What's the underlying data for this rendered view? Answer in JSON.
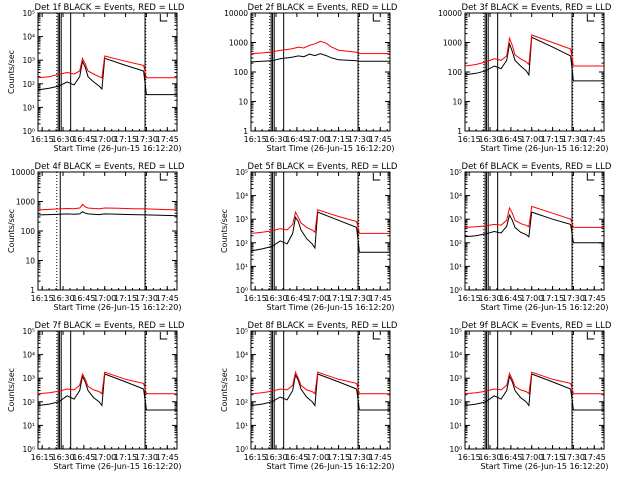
{
  "xlabel": "Start Time (26-Jun-15 16:12:20)",
  "x_ticks": [
    "16:15",
    "16:30",
    "16:45",
    "17:00",
    "17:15",
    "17:30",
    "17:45"
  ],
  "colors": {
    "events": "#000000",
    "lld": "#ff0000",
    "axes": "#000000"
  },
  "chart_data": [
    {
      "type": "line",
      "title": "Det 1f BLACK = Events, RED = LLD",
      "ylabel": "Counts/sec",
      "yscale": "log",
      "ylim": [
        1,
        100000
      ],
      "y_tick_labels": [
        "10⁰",
        "10¹",
        "10²",
        "10³",
        "10⁴",
        "10⁵"
      ],
      "x": [
        "16:12",
        "16:20",
        "16:27",
        "16:33",
        "16:38",
        "16:42",
        "16:44",
        "16:46",
        "16:48",
        "16:52",
        "16:56",
        "16:58",
        "17:00",
        "17:15",
        "17:28",
        "17:30",
        "17:45",
        "17:52"
      ],
      "series": [
        {
          "name": "BLACK = Events",
          "values": [
            55,
            65,
            80,
            120,
            90,
            200,
            900,
            500,
            200,
            120,
            80,
            60,
            1200,
            600,
            350,
            35,
            35,
            35
          ]
        },
        {
          "name": "RED = LLD",
          "values": [
            180,
            200,
            250,
            300,
            260,
            350,
            1200,
            700,
            350,
            260,
            200,
            180,
            1500,
            900,
            600,
            180,
            180,
            180
          ]
        }
      ]
    },
    {
      "type": "line",
      "title": "Det 2f BLACK = Events, RED = LLD",
      "ylabel": "",
      "yscale": "log",
      "ylim": [
        1,
        10000
      ],
      "y_tick_labels": [
        "1",
        "10",
        "100",
        "1000",
        "10000"
      ],
      "x": [
        "16:12",
        "16:20",
        "16:27",
        "16:33",
        "16:38",
        "16:42",
        "16:46",
        "16:50",
        "16:54",
        "16:58",
        "17:02",
        "17:06",
        "17:10",
        "17:15",
        "17:28",
        "17:30",
        "17:45",
        "17:52"
      ],
      "series": [
        {
          "name": "BLACK = Events",
          "values": [
            220,
            230,
            240,
            280,
            300,
            320,
            350,
            330,
            400,
            360,
            420,
            360,
            300,
            260,
            240,
            230,
            230,
            230
          ]
        },
        {
          "name": "RED = LLD",
          "values": [
            420,
            440,
            480,
            540,
            580,
            620,
            700,
            650,
            800,
            900,
            1100,
            950,
            700,
            550,
            470,
            420,
            420,
            420
          ]
        }
      ]
    },
    {
      "type": "line",
      "title": "Det 3f BLACK = Events, RED = LLD",
      "ylabel": "",
      "yscale": "log",
      "ylim": [
        1,
        10000
      ],
      "y_tick_labels": [
        "1",
        "10",
        "100",
        "1000",
        "10000"
      ],
      "x": [
        "16:12",
        "16:20",
        "16:27",
        "16:33",
        "16:38",
        "16:42",
        "16:44",
        "16:46",
        "16:48",
        "16:52",
        "16:56",
        "16:58",
        "17:00",
        "17:15",
        "17:28",
        "17:30",
        "17:45",
        "17:52"
      ],
      "series": [
        {
          "name": "BLACK = Events",
          "values": [
            80,
            90,
            110,
            160,
            130,
            250,
            900,
            500,
            250,
            160,
            110,
            80,
            1500,
            700,
            350,
            50,
            50,
            50
          ]
        },
        {
          "name": "RED = LLD",
          "values": [
            160,
            180,
            220,
            280,
            250,
            350,
            1400,
            800,
            380,
            280,
            220,
            180,
            1800,
            1000,
            600,
            160,
            160,
            160
          ]
        }
      ]
    },
    {
      "type": "line",
      "title": "Det 4f BLACK = Events, RED = LLD",
      "ylabel": "Counts/sec",
      "yscale": "log",
      "ylim": [
        1,
        10000
      ],
      "y_tick_labels": [
        "1",
        "10",
        "100",
        "1000",
        "10000"
      ],
      "x": [
        "16:12",
        "16:20",
        "16:27",
        "16:33",
        "16:38",
        "16:42",
        "16:44",
        "16:46",
        "16:48",
        "16:52",
        "16:56",
        "17:00",
        "17:10",
        "17:20",
        "17:30",
        "17:40",
        "17:52"
      ],
      "series": [
        {
          "name": "BLACK = Events",
          "values": [
            350,
            360,
            370,
            380,
            370,
            380,
            450,
            400,
            380,
            370,
            360,
            380,
            370,
            360,
            350,
            340,
            330
          ]
        },
        {
          "name": "RED = LLD",
          "values": [
            520,
            540,
            560,
            580,
            570,
            600,
            800,
            650,
            600,
            580,
            570,
            600,
            590,
            570,
            560,
            540,
            520
          ]
        }
      ]
    },
    {
      "type": "line",
      "title": "Det 5f BLACK = Events, RED = LLD",
      "ylabel": "Counts/sec",
      "yscale": "log",
      "ylim": [
        1,
        100000
      ],
      "y_tick_labels": [
        "10⁰",
        "10¹",
        "10²",
        "10³",
        "10⁴",
        "10⁵"
      ],
      "x": [
        "16:12",
        "16:20",
        "16:27",
        "16:33",
        "16:38",
        "16:42",
        "16:44",
        "16:46",
        "16:48",
        "16:52",
        "16:56",
        "16:58",
        "17:00",
        "17:15",
        "17:28",
        "17:30",
        "17:45",
        "17:52"
      ],
      "series": [
        {
          "name": "BLACK = Events",
          "values": [
            45,
            55,
            70,
            120,
            90,
            250,
            1200,
            800,
            350,
            150,
            90,
            60,
            2000,
            900,
            450,
            40,
            40,
            40
          ]
        },
        {
          "name": "RED = LLD",
          "values": [
            250,
            280,
            320,
            400,
            350,
            600,
            2000,
            1200,
            700,
            450,
            350,
            280,
            2500,
            1300,
            800,
            250,
            250,
            250
          ]
        }
      ]
    },
    {
      "type": "line",
      "title": "Det 6f BLACK = Events, RED = LLD",
      "ylabel": "",
      "yscale": "log",
      "ylim": [
        1,
        100000
      ],
      "y_tick_labels": [
        "10⁰",
        "10¹",
        "10²",
        "10³",
        "10⁴",
        "10⁵"
      ],
      "x": [
        "16:12",
        "16:20",
        "16:27",
        "16:33",
        "16:38",
        "16:42",
        "16:44",
        "16:46",
        "16:48",
        "16:52",
        "16:56",
        "16:58",
        "17:00",
        "17:15",
        "17:28",
        "17:30",
        "17:45",
        "17:52"
      ],
      "series": [
        {
          "name": "BLACK = Events",
          "values": [
            180,
            200,
            240,
            300,
            260,
            500,
            1500,
            900,
            450,
            280,
            220,
            180,
            2000,
            1000,
            600,
            100,
            100,
            100
          ]
        },
        {
          "name": "RED = LLD",
          "values": [
            450,
            480,
            520,
            600,
            560,
            900,
            3000,
            1800,
            900,
            650,
            550,
            480,
            3500,
            1800,
            1000,
            450,
            450,
            450
          ]
        }
      ]
    },
    {
      "type": "line",
      "title": "Det 7f BLACK = Events, RED = LLD",
      "ylabel": "Counts/sec",
      "yscale": "log",
      "ylim": [
        1,
        100000
      ],
      "y_tick_labels": [
        "10⁰",
        "10¹",
        "10²",
        "10³",
        "10⁴",
        "10⁵"
      ],
      "x": [
        "16:12",
        "16:20",
        "16:27",
        "16:33",
        "16:38",
        "16:42",
        "16:44",
        "16:46",
        "16:48",
        "16:52",
        "16:56",
        "16:58",
        "17:00",
        "17:15",
        "17:28",
        "17:30",
        "17:45",
        "17:52"
      ],
      "series": [
        {
          "name": "BLACK = Events",
          "values": [
            70,
            80,
            100,
            180,
            130,
            300,
            1200,
            700,
            300,
            150,
            100,
            70,
            1500,
            700,
            350,
            45,
            45,
            45
          ]
        },
        {
          "name": "RED = LLD",
          "values": [
            220,
            240,
            280,
            350,
            320,
            500,
            1500,
            900,
            450,
            320,
            270,
            220,
            1800,
            900,
            600,
            220,
            220,
            220
          ]
        }
      ]
    },
    {
      "type": "line",
      "title": "Det 8f BLACK = Events, RED = LLD",
      "ylabel": "Counts/sec",
      "yscale": "log",
      "ylim": [
        1,
        100000
      ],
      "y_tick_labels": [
        "10⁰",
        "10¹",
        "10²",
        "10³",
        "10⁴",
        "10⁵"
      ],
      "x": [
        "16:12",
        "16:20",
        "16:27",
        "16:33",
        "16:38",
        "16:42",
        "16:44",
        "16:46",
        "16:48",
        "16:52",
        "16:56",
        "16:58",
        "17:00",
        "17:15",
        "17:28",
        "17:30",
        "17:45",
        "17:52"
      ],
      "series": [
        {
          "name": "BLACK = Events",
          "values": [
            70,
            80,
            100,
            160,
            120,
            300,
            1400,
            800,
            350,
            160,
            100,
            70,
            1500,
            700,
            350,
            45,
            45,
            45
          ]
        },
        {
          "name": "RED = LLD",
          "values": [
            220,
            240,
            280,
            350,
            320,
            500,
            1800,
            1000,
            500,
            320,
            270,
            220,
            1800,
            900,
            600,
            220,
            220,
            220
          ]
        }
      ]
    },
    {
      "type": "line",
      "title": "Det 9f BLACK = Events, RED = LLD",
      "ylabel": "",
      "yscale": "log",
      "ylim": [
        1,
        100000
      ],
      "y_tick_labels": [
        "10⁰",
        "10¹",
        "10²",
        "10³",
        "10⁴",
        "10⁵"
      ],
      "x": [
        "16:12",
        "16:20",
        "16:27",
        "16:33",
        "16:38",
        "16:42",
        "16:44",
        "16:46",
        "16:48",
        "16:52",
        "16:56",
        "16:58",
        "17:00",
        "17:15",
        "17:28",
        "17:30",
        "17:45",
        "17:52"
      ],
      "series": [
        {
          "name": "BLACK = Events",
          "values": [
            70,
            80,
            100,
            180,
            130,
            300,
            1200,
            700,
            300,
            150,
            100,
            70,
            1500,
            700,
            350,
            45,
            45,
            45
          ]
        },
        {
          "name": "RED = LLD",
          "values": [
            220,
            240,
            280,
            350,
            320,
            500,
            1600,
            900,
            450,
            320,
            270,
            220,
            1800,
            900,
            600,
            220,
            220,
            220
          ]
        }
      ]
    }
  ]
}
